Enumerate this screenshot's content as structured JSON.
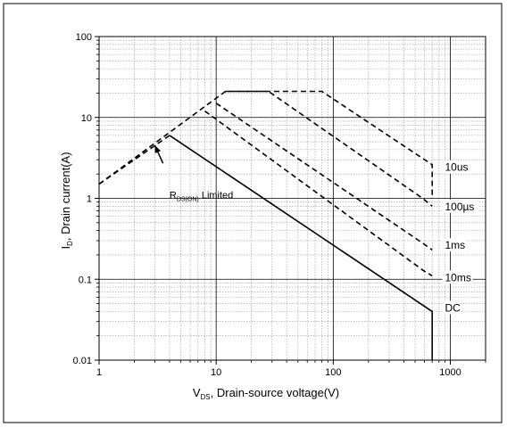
{
  "chart_data": {
    "type": "line",
    "x_scale": "log",
    "y_scale": "log",
    "xlim": [
      1,
      2000
    ],
    "ylim": [
      0.01,
      100
    ],
    "xlabel": {
      "main": "V",
      "sub": "DS",
      "rest": ", Drain-source voltage(V)"
    },
    "ylabel": {
      "main": "I",
      "sub": "D",
      "rest": ", Drain current(A)"
    },
    "x_ticks": [
      {
        "value": 1,
        "label": "1"
      },
      {
        "value": 10,
        "label": "10"
      },
      {
        "value": 100,
        "label": "100"
      },
      {
        "value": 1000,
        "label": "1000"
      }
    ],
    "y_ticks": [
      {
        "value": 0.01,
        "label": "0.01"
      },
      {
        "value": 0.1,
        "label": "0.1"
      },
      {
        "value": 1,
        "label": "1"
      },
      {
        "value": 10,
        "label": "10"
      },
      {
        "value": 100,
        "label": "100"
      }
    ],
    "grid": true,
    "series": [
      {
        "name": "10us",
        "style": "dashed",
        "x": [
          1,
          12,
          80,
          700,
          700
        ],
        "y": [
          1.5,
          21,
          21,
          2.6,
          1
        ]
      },
      {
        "name": "100µs",
        "style": "dashed",
        "x": [
          12,
          28,
          580,
          700
        ],
        "y": [
          21,
          21,
          1,
          0.8
        ]
      },
      {
        "name": "1ms",
        "style": "dashed",
        "x": [
          10,
          580,
          700
        ],
        "y": [
          15,
          0.28,
          0.23
        ]
      },
      {
        "name": "10ms",
        "style": "dashed",
        "x": [
          8,
          580,
          700
        ],
        "y": [
          12,
          0.13,
          0.11
        ]
      },
      {
        "name": "DC",
        "style": "solid",
        "x": [
          4,
          700,
          700
        ],
        "y": [
          6,
          0.04,
          0.01
        ]
      },
      {
        "name": "rds-limit",
        "style": "dashed",
        "x": [
          1,
          4
        ],
        "y": [
          1.5,
          6
        ]
      }
    ],
    "annotations": [
      {
        "text": "R",
        "sub": "DS(ON)",
        "rest": " Limited",
        "x": 4.6,
        "y": 1.1,
        "arrow_to_x": 3.0,
        "arrow_to_y": 4.5
      }
    ],
    "curve_labels": [
      {
        "text": "10us",
        "x": 900,
        "y": 2.3
      },
      {
        "text": "100µs",
        "x": 900,
        "y": 0.75
      },
      {
        "text": "1ms",
        "x": 900,
        "y": 0.25
      },
      {
        "text": "10ms",
        "x": 900,
        "y": 0.1
      },
      {
        "text": "DC",
        "x": 900,
        "y": 0.042
      }
    ]
  }
}
